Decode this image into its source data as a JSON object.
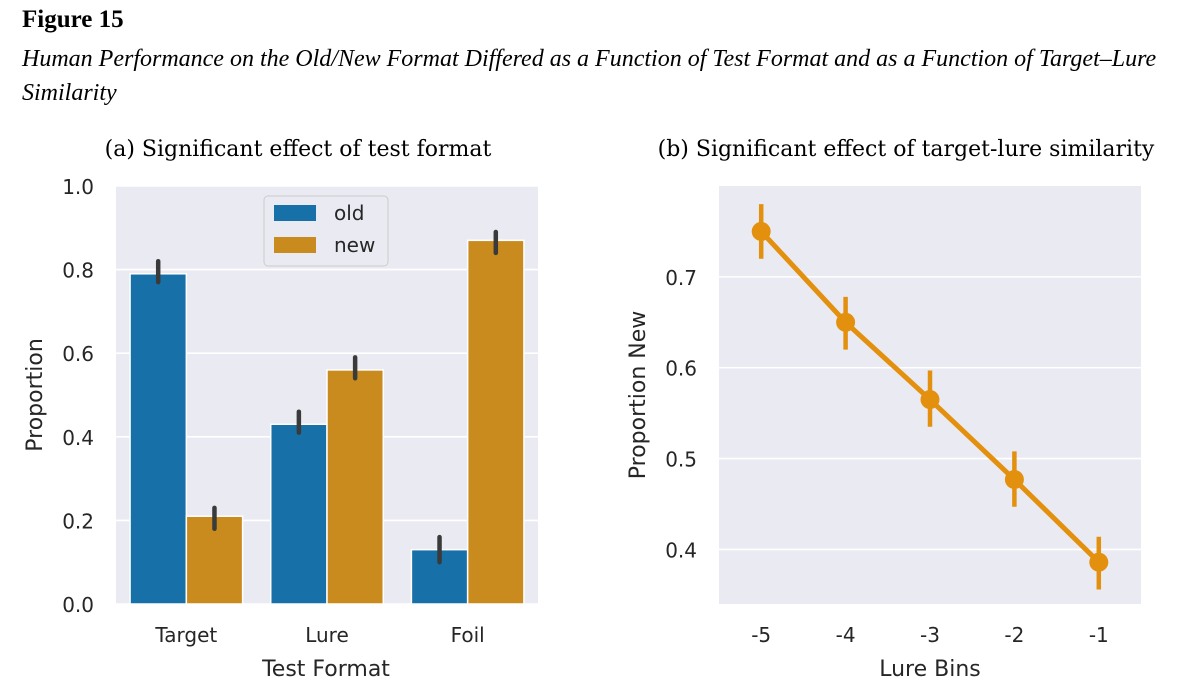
{
  "figure": {
    "number": "Figure 15",
    "title": "Human Performance on the Old/New Format Differed as a Function of Test Format and as a Function of Target–Lure Similarity"
  },
  "colors": {
    "old": "#1770a8",
    "new": "#c98a1e",
    "line": "#e3900f",
    "panel_bg": "#eaeaf2",
    "error": "#3a3a3a"
  },
  "chart_data": [
    {
      "type": "bar",
      "title": "(a) Significant effect of test format",
      "xlabel": "Test Format",
      "ylabel": "Proportion",
      "ylim": [
        0.0,
        1.0
      ],
      "yticks": [
        "0.0",
        "0.2",
        "0.4",
        "0.6",
        "0.8",
        "1.0"
      ],
      "categories": [
        "Target",
        "Lure",
        "Foil"
      ],
      "legend_position": "top-center",
      "grid": true,
      "series": [
        {
          "name": "old",
          "values": [
            0.79,
            0.43,
            0.13
          ],
          "err_low": [
            0.77,
            0.41,
            0.1
          ],
          "err_high": [
            0.82,
            0.46,
            0.16
          ]
        },
        {
          "name": "new",
          "values": [
            0.21,
            0.56,
            0.87
          ],
          "err_low": [
            0.18,
            0.54,
            0.84
          ],
          "err_high": [
            0.23,
            0.59,
            0.89
          ]
        }
      ]
    },
    {
      "type": "line",
      "title": "(b) Significant effect of target-lure similarity",
      "xlabel": "Lure Bins",
      "ylabel": "Proportion New",
      "ylim": [
        0.34,
        0.8
      ],
      "yticks": [
        "0.4",
        "0.5",
        "0.6",
        "0.7"
      ],
      "grid": true,
      "x": [
        "-5",
        "-4",
        "-3",
        "-2",
        "-1"
      ],
      "y": [
        0.75,
        0.65,
        0.565,
        0.477,
        0.386
      ],
      "err_low": [
        0.72,
        0.62,
        0.535,
        0.447,
        0.356
      ],
      "err_high": [
        0.78,
        0.678,
        0.597,
        0.508,
        0.414
      ]
    }
  ]
}
